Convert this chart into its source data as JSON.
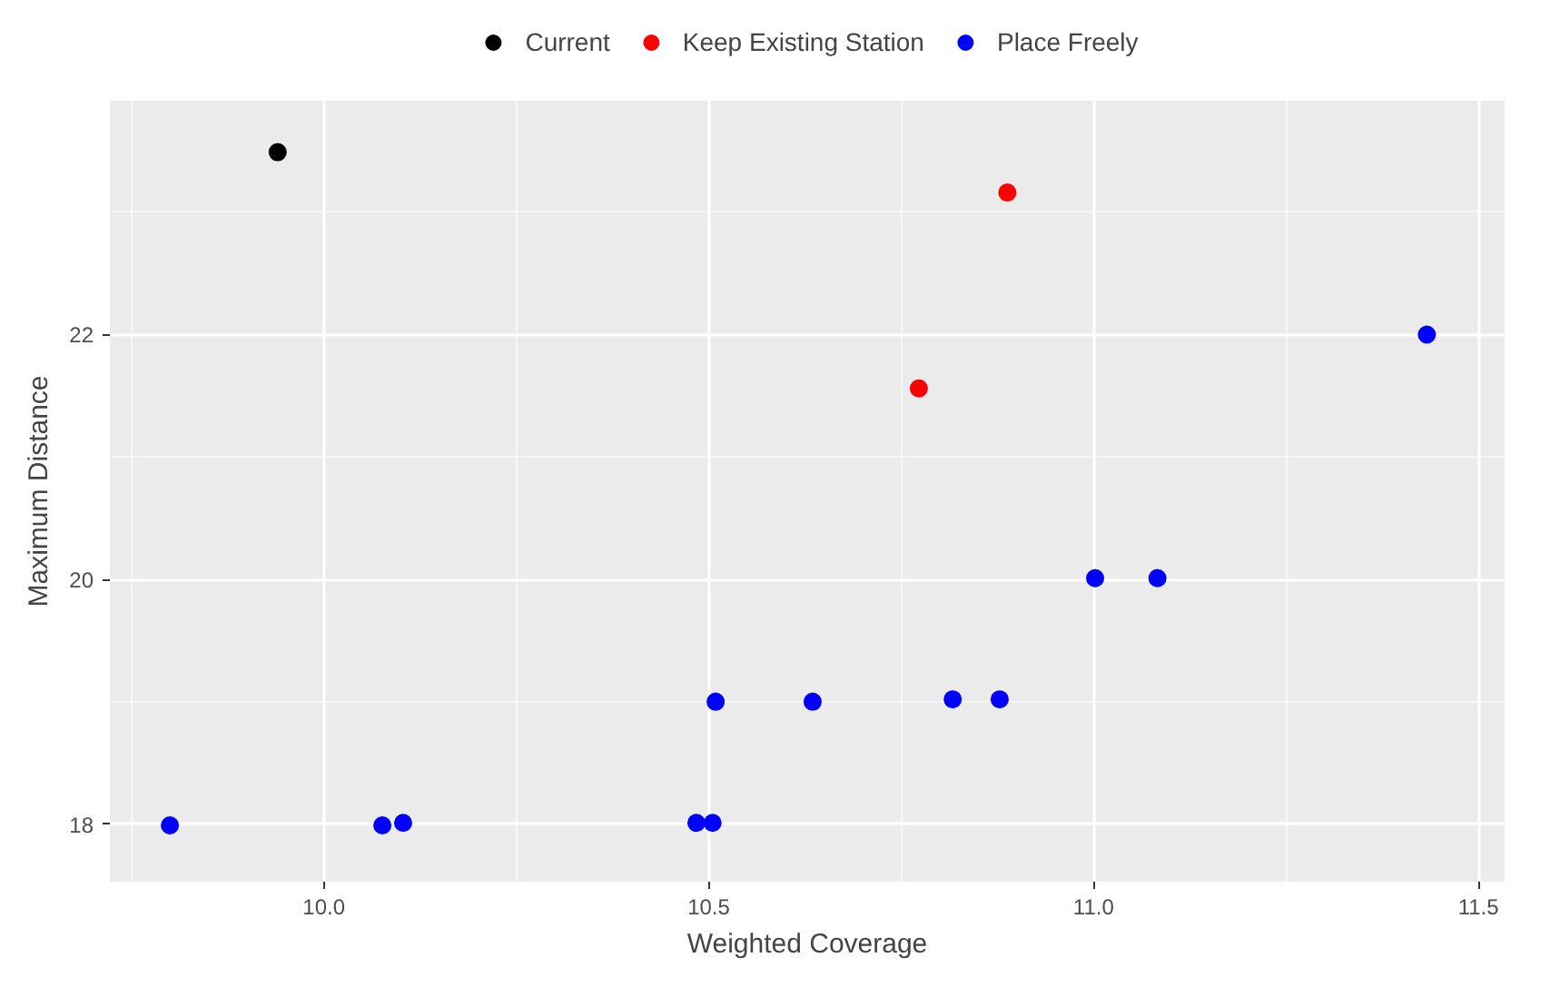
{
  "chart_data": {
    "type": "scatter",
    "xlabel": "Weighted Coverage",
    "ylabel": "Maximum Distance",
    "series": [
      {
        "name": "Current",
        "color": "#000000",
        "x": [
          9.94
        ],
        "values": [
          23.49
        ]
      },
      {
        "name": "Keep Existing Station",
        "color": "#ff0000",
        "x": [
          10.888,
          10.773
        ],
        "values": [
          23.16,
          21.56
        ]
      },
      {
        "name": "Place Freely",
        "color": "#0000ff",
        "x": [
          9.8,
          10.076,
          10.103,
          10.484,
          10.505,
          10.509,
          10.635,
          10.817,
          10.878,
          11.002,
          11.083,
          11.433
        ],
        "values": [
          17.99,
          17.99,
          18.01,
          18.01,
          18.01,
          19.0,
          19.0,
          19.02,
          19.02,
          20.01,
          20.01,
          22.0
        ]
      }
    ],
    "xlim": [
      9.722,
      11.534
    ],
    "ylim": [
      17.53,
      23.91
    ],
    "xticks": [
      {
        "value": 10.0,
        "label": "10.0"
      },
      {
        "value": 10.5,
        "label": "10.5"
      },
      {
        "value": 11.0,
        "label": "11.0"
      },
      {
        "value": 11.5,
        "label": "11.5"
      }
    ],
    "yticks": [
      18,
      20,
      22
    ],
    "grid": true,
    "legend": "top",
    "marker": "circle"
  }
}
